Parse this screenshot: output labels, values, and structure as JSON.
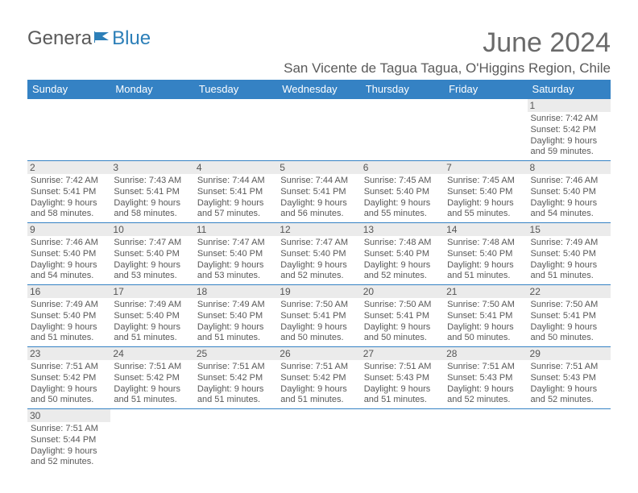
{
  "brand": {
    "part1": "Genera",
    "part2": "Blue"
  },
  "title": "June 2024",
  "location": "San Vicente de Tagua Tagua, O'Higgins Region, Chile",
  "colors": {
    "header_bg": "#3582c4",
    "header_text": "#ffffff",
    "row_sep": "#3582c4",
    "cell_border": "#bcbcbc",
    "daynum_bg": "#ebebeb",
    "text": "#585858",
    "title_text": "#6a6a6a",
    "logo_gray": "#5a5a5a",
    "logo_blue": "#2c7fb8",
    "background": "#ffffff"
  },
  "days_of_week": [
    "Sunday",
    "Monday",
    "Tuesday",
    "Wednesday",
    "Thursday",
    "Friday",
    "Saturday"
  ],
  "weeks": [
    [
      null,
      null,
      null,
      null,
      null,
      null,
      {
        "n": "1",
        "sunrise": "7:42 AM",
        "sunset": "5:42 PM",
        "daylight": "9 hours and 59 minutes."
      }
    ],
    [
      {
        "n": "2",
        "sunrise": "7:42 AM",
        "sunset": "5:41 PM",
        "daylight": "9 hours and 58 minutes."
      },
      {
        "n": "3",
        "sunrise": "7:43 AM",
        "sunset": "5:41 PM",
        "daylight": "9 hours and 58 minutes."
      },
      {
        "n": "4",
        "sunrise": "7:44 AM",
        "sunset": "5:41 PM",
        "daylight": "9 hours and 57 minutes."
      },
      {
        "n": "5",
        "sunrise": "7:44 AM",
        "sunset": "5:41 PM",
        "daylight": "9 hours and 56 minutes."
      },
      {
        "n": "6",
        "sunrise": "7:45 AM",
        "sunset": "5:40 PM",
        "daylight": "9 hours and 55 minutes."
      },
      {
        "n": "7",
        "sunrise": "7:45 AM",
        "sunset": "5:40 PM",
        "daylight": "9 hours and 55 minutes."
      },
      {
        "n": "8",
        "sunrise": "7:46 AM",
        "sunset": "5:40 PM",
        "daylight": "9 hours and 54 minutes."
      }
    ],
    [
      {
        "n": "9",
        "sunrise": "7:46 AM",
        "sunset": "5:40 PM",
        "daylight": "9 hours and 54 minutes."
      },
      {
        "n": "10",
        "sunrise": "7:47 AM",
        "sunset": "5:40 PM",
        "daylight": "9 hours and 53 minutes."
      },
      {
        "n": "11",
        "sunrise": "7:47 AM",
        "sunset": "5:40 PM",
        "daylight": "9 hours and 53 minutes."
      },
      {
        "n": "12",
        "sunrise": "7:47 AM",
        "sunset": "5:40 PM",
        "daylight": "9 hours and 52 minutes."
      },
      {
        "n": "13",
        "sunrise": "7:48 AM",
        "sunset": "5:40 PM",
        "daylight": "9 hours and 52 minutes."
      },
      {
        "n": "14",
        "sunrise": "7:48 AM",
        "sunset": "5:40 PM",
        "daylight": "9 hours and 51 minutes."
      },
      {
        "n": "15",
        "sunrise": "7:49 AM",
        "sunset": "5:40 PM",
        "daylight": "9 hours and 51 minutes."
      }
    ],
    [
      {
        "n": "16",
        "sunrise": "7:49 AM",
        "sunset": "5:40 PM",
        "daylight": "9 hours and 51 minutes."
      },
      {
        "n": "17",
        "sunrise": "7:49 AM",
        "sunset": "5:40 PM",
        "daylight": "9 hours and 51 minutes."
      },
      {
        "n": "18",
        "sunrise": "7:49 AM",
        "sunset": "5:40 PM",
        "daylight": "9 hours and 51 minutes."
      },
      {
        "n": "19",
        "sunrise": "7:50 AM",
        "sunset": "5:41 PM",
        "daylight": "9 hours and 50 minutes."
      },
      {
        "n": "20",
        "sunrise": "7:50 AM",
        "sunset": "5:41 PM",
        "daylight": "9 hours and 50 minutes."
      },
      {
        "n": "21",
        "sunrise": "7:50 AM",
        "sunset": "5:41 PM",
        "daylight": "9 hours and 50 minutes."
      },
      {
        "n": "22",
        "sunrise": "7:50 AM",
        "sunset": "5:41 PM",
        "daylight": "9 hours and 50 minutes."
      }
    ],
    [
      {
        "n": "23",
        "sunrise": "7:51 AM",
        "sunset": "5:42 PM",
        "daylight": "9 hours and 50 minutes."
      },
      {
        "n": "24",
        "sunrise": "7:51 AM",
        "sunset": "5:42 PM",
        "daylight": "9 hours and 51 minutes."
      },
      {
        "n": "25",
        "sunrise": "7:51 AM",
        "sunset": "5:42 PM",
        "daylight": "9 hours and 51 minutes."
      },
      {
        "n": "26",
        "sunrise": "7:51 AM",
        "sunset": "5:42 PM",
        "daylight": "9 hours and 51 minutes."
      },
      {
        "n": "27",
        "sunrise": "7:51 AM",
        "sunset": "5:43 PM",
        "daylight": "9 hours and 51 minutes."
      },
      {
        "n": "28",
        "sunrise": "7:51 AM",
        "sunset": "5:43 PM",
        "daylight": "9 hours and 52 minutes."
      },
      {
        "n": "29",
        "sunrise": "7:51 AM",
        "sunset": "5:43 PM",
        "daylight": "9 hours and 52 minutes."
      }
    ],
    [
      {
        "n": "30",
        "sunrise": "7:51 AM",
        "sunset": "5:44 PM",
        "daylight": "9 hours and 52 minutes."
      },
      null,
      null,
      null,
      null,
      null,
      null
    ]
  ],
  "labels": {
    "sunrise": "Sunrise:",
    "sunset": "Sunset:",
    "daylight": "Daylight:"
  }
}
